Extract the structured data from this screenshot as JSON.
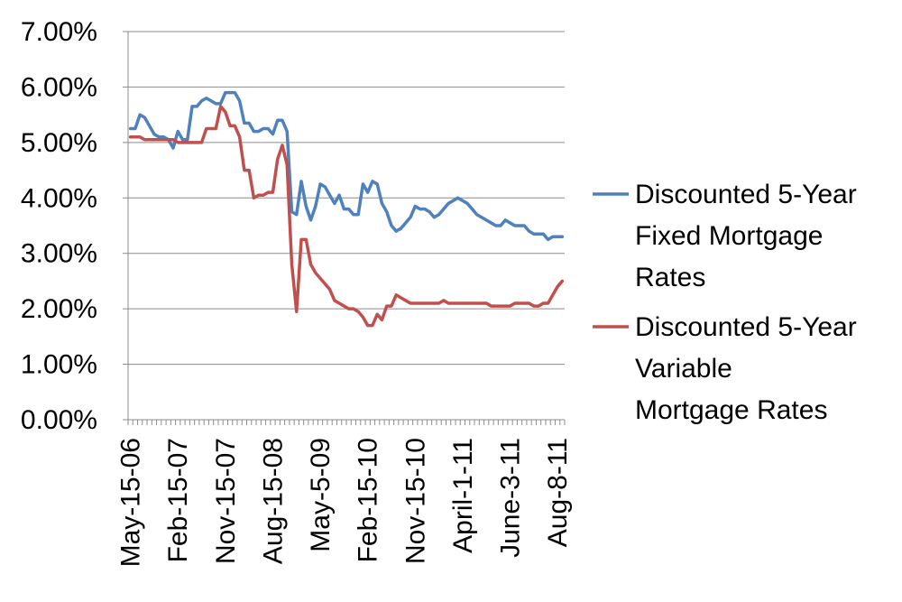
{
  "chart_data": {
    "type": "line",
    "title": "",
    "xlabel": "",
    "ylabel": "",
    "ylim": [
      0,
      0.07
    ],
    "y_ticks": [
      "0.00%",
      "1.00%",
      "2.00%",
      "3.00%",
      "4.00%",
      "5.00%",
      "6.00%",
      "7.00%"
    ],
    "x_tick_labels": [
      "May-15-06",
      "Feb-15-07",
      "Nov-15-07",
      "Aug-15-08",
      "May-5-09",
      "Feb-15-10",
      "Nov-15-10",
      "April-1-11",
      "June-3-11",
      "Aug-8-11"
    ],
    "grid": "horizontal",
    "legend_position": "right",
    "series": [
      {
        "name": "Discounted 5-Year Fixed Mortgage Rates",
        "color": "#4F81BD",
        "values": [
          0.0525,
          0.0525,
          0.055,
          0.0545,
          0.053,
          0.0515,
          0.051,
          0.051,
          0.0505,
          0.049,
          0.052,
          0.0505,
          0.0505,
          0.0565,
          0.0565,
          0.0575,
          0.058,
          0.0575,
          0.057,
          0.057,
          0.059,
          0.059,
          0.059,
          0.0575,
          0.0535,
          0.0535,
          0.052,
          0.052,
          0.0525,
          0.0525,
          0.0515,
          0.054,
          0.054,
          0.052,
          0.0375,
          0.037,
          0.043,
          0.0385,
          0.036,
          0.0385,
          0.0425,
          0.042,
          0.0405,
          0.039,
          0.0405,
          0.038,
          0.038,
          0.037,
          0.037,
          0.0425,
          0.041,
          0.043,
          0.0425,
          0.039,
          0.0375,
          0.035,
          0.034,
          0.0345,
          0.0355,
          0.0365,
          0.0385,
          0.038,
          0.038,
          0.0375,
          0.0365,
          0.037,
          0.038,
          0.039,
          0.0395,
          0.04,
          0.0395,
          0.039,
          0.038,
          0.037,
          0.0365,
          0.036,
          0.0355,
          0.035,
          0.035,
          0.036,
          0.0355,
          0.035,
          0.035,
          0.035,
          0.034,
          0.0335,
          0.0335,
          0.0335,
          0.0325,
          0.033,
          0.033,
          0.033
        ]
      },
      {
        "name": "Discounted 5-Year Variable Mortgage Rates",
        "color": "#C0504D",
        "values": [
          0.051,
          0.051,
          0.051,
          0.0505,
          0.0505,
          0.0505,
          0.0505,
          0.0505,
          0.0505,
          0.0505,
          0.05,
          0.05,
          0.05,
          0.05,
          0.05,
          0.05,
          0.0525,
          0.0525,
          0.0525,
          0.0565,
          0.0555,
          0.053,
          0.053,
          0.051,
          0.045,
          0.045,
          0.04,
          0.0405,
          0.0405,
          0.041,
          0.041,
          0.047,
          0.0495,
          0.046,
          0.028,
          0.0195,
          0.0325,
          0.0325,
          0.028,
          0.0265,
          0.0255,
          0.0245,
          0.0235,
          0.0215,
          0.021,
          0.0205,
          0.02,
          0.02,
          0.0195,
          0.0185,
          0.017,
          0.017,
          0.019,
          0.018,
          0.0205,
          0.0205,
          0.0225,
          0.022,
          0.0215,
          0.021,
          0.021,
          0.021,
          0.021,
          0.021,
          0.021,
          0.021,
          0.0215,
          0.021,
          0.021,
          0.021,
          0.021,
          0.021,
          0.021,
          0.021,
          0.021,
          0.021,
          0.0205,
          0.0205,
          0.0205,
          0.0205,
          0.0205,
          0.021,
          0.021,
          0.021,
          0.021,
          0.0205,
          0.0205,
          0.021,
          0.021,
          0.0225,
          0.024,
          0.025
        ]
      }
    ]
  }
}
